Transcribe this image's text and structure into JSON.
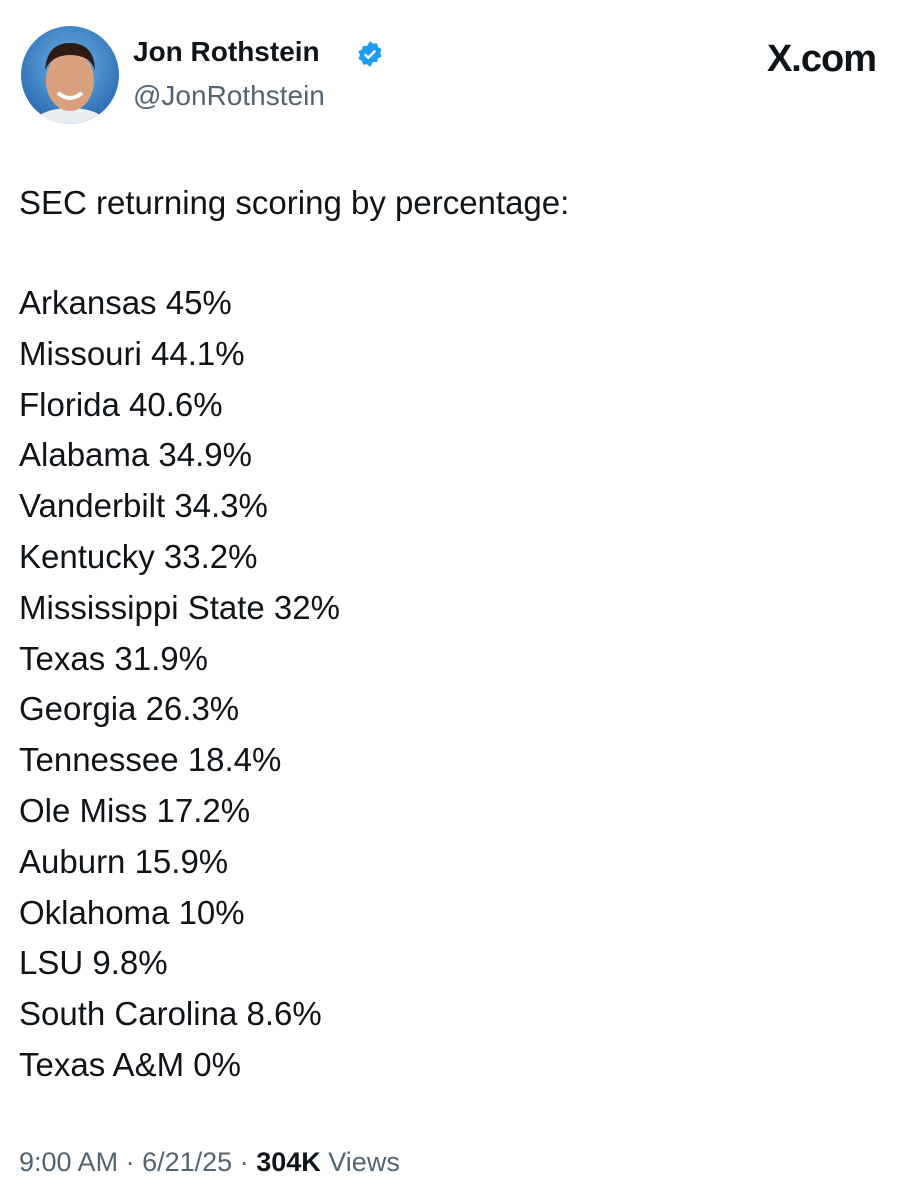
{
  "author": {
    "name": "Jon Rothstein",
    "handle": "@JonRothstein"
  },
  "brand": "X.com",
  "post": {
    "heading": "SEC returning scoring by percentage:",
    "lines": [
      "Arkansas 45%",
      "Missouri 44.1%",
      "Florida 40.6%",
      "Alabama 34.9%",
      "Vanderbilt 34.3%",
      "Kentucky 33.2%",
      "Mississippi State 32%",
      "Texas 31.9%",
      "Georgia 26.3%",
      "Tennessee 18.4%",
      "Ole Miss 17.2%",
      "Auburn 15.9%",
      "Oklahoma 10%",
      "LSU 9.8%",
      "South Carolina 8.6%",
      "Texas A&M 0%"
    ]
  },
  "footer": {
    "time": "9:00 AM",
    "separator": "·",
    "date": "6/21/25",
    "views": "304K",
    "views_label": "Views"
  }
}
